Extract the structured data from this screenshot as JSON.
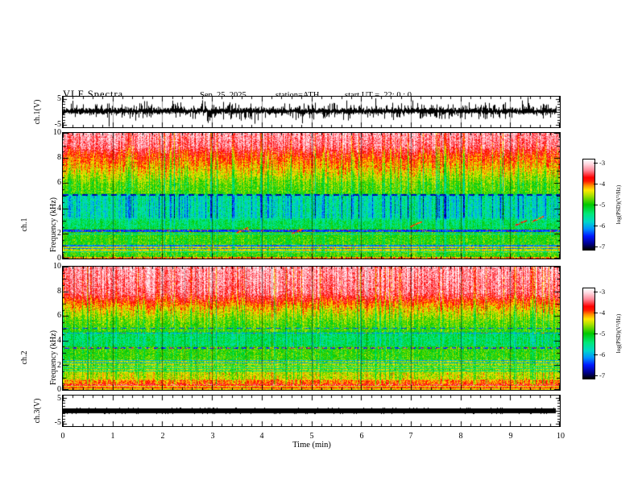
{
  "figure": {
    "title": "VLF Spectra",
    "date": "Sep. 25, 2025",
    "station": "station=ATH",
    "start_ut": "start UT =  22: 0 : 0",
    "time_axis": {
      "label": "Time (min)",
      "min": 0,
      "max": 10,
      "minor_step": 0.2,
      "tick_labels": [
        "0",
        "1",
        "2",
        "3",
        "4",
        "5",
        "6",
        "7",
        "8",
        "9",
        "10"
      ]
    }
  },
  "panels": {
    "ch1_wave": {
      "ylabel": "ch.1(V)",
      "ymin": -5,
      "ymax": 5,
      "tick_labels": [
        "5",
        "-5"
      ]
    },
    "ch1_spec": {
      "channel": "ch.1",
      "ylabel": "Frequency (kHz)",
      "fmin": 0,
      "fmax": 10,
      "tick_labels": [
        "10",
        "8",
        "6",
        "4",
        "2",
        "0"
      ]
    },
    "ch2_spec": {
      "channel": "ch.2",
      "ylabel": "Frequency (kHz)",
      "fmin": 0,
      "fmax": 10,
      "tick_labels": [
        "10",
        "8",
        "6",
        "4",
        "2",
        "0"
      ]
    },
    "ch3_wave": {
      "ylabel": "ch.3(V)",
      "ymin": -5,
      "ymax": 5,
      "tick_labels": [
        "5",
        "-5"
      ]
    }
  },
  "colorbar": {
    "label": "log(PSD)(V²/Hz)",
    "zmin": -7,
    "zmax": -3,
    "tick_labels": [
      "-3",
      "-4",
      "-5",
      "-6",
      "-7"
    ],
    "stops": [
      [
        0,
        "#000000"
      ],
      [
        0.07,
        "#000090"
      ],
      [
        0.15,
        "#0018ff"
      ],
      [
        0.23,
        "#0090ff"
      ],
      [
        0.31,
        "#00d8c8"
      ],
      [
        0.4,
        "#00e878"
      ],
      [
        0.5,
        "#00c800"
      ],
      [
        0.6,
        "#a8e000"
      ],
      [
        0.66,
        "#ffe800"
      ],
      [
        0.71,
        "#ff9000"
      ],
      [
        0.76,
        "#ff1800"
      ],
      [
        0.8,
        "#ff0000"
      ],
      [
        0.88,
        "#ff8898"
      ],
      [
        0.95,
        "#ffd8e0"
      ],
      [
        1,
        "#ffffff"
      ]
    ]
  },
  "chart_data": [
    {
      "type": "line",
      "name": "ch.1(V) waveform",
      "xlabel": "Time (min)",
      "ylabel": "ch.1(V)",
      "xlim": [
        0,
        10
      ],
      "ylim": [
        -5,
        5
      ],
      "summary": "dense black broadband noise centred near +0.3 V with impulsive spikes reaching about ±5 V over the full 10 minutes",
      "gen": {
        "center": 0.35,
        "drift": 0.3,
        "body": 0.85,
        "spike_prob": 0.26,
        "spike_amp": 2.2,
        "big_spike_prob": 0.06,
        "big_spike_amp": 3.1,
        "grid_minutes": true
      }
    },
    {
      "type": "heatmap",
      "name": "ch.1 spectrogram",
      "xlabel": "Time (min)",
      "ylabel": "Frequency (kHz)",
      "zlabel": "log(PSD)(V²/Hz)",
      "xlim": [
        0,
        10
      ],
      "ylim": [
        0,
        10
      ],
      "zlim": [
        -7,
        -3
      ],
      "summary": "red (-3.5) above ~8 kHz grading through yellow to green near 6 kHz; blue low-PSD band (-5.6 to -6.5) between ~3 and 5 kHz with dark vertical striations; green below 3 kHz with dark horizontal interference lines near 2.2, 2.0, 1.0, 0.8 and 0.5 kHz and a dashed dark line at ~5 kHz",
      "base_profile": [
        [
          0,
          -4.85
        ],
        [
          0.45,
          -4.85
        ],
        [
          0.6,
          -4.5
        ],
        [
          1.0,
          -4.5
        ],
        [
          1.15,
          -4.9
        ],
        [
          2.25,
          -4.95
        ],
        [
          2.45,
          -5.25
        ],
        [
          3.0,
          -5.3
        ],
        [
          3.3,
          -5.6
        ],
        [
          5.0,
          -5.6
        ],
        [
          5.2,
          -4.85
        ],
        [
          5.9,
          -4.8
        ],
        [
          7.0,
          -4.35
        ],
        [
          8.3,
          -3.85
        ],
        [
          8.9,
          -3.5
        ],
        [
          10,
          -3.35
        ]
      ],
      "streak_amp": [
        [
          0,
          0.28
        ],
        [
          3.1,
          0.3
        ],
        [
          3.3,
          0.6
        ],
        [
          5.0,
          0.6
        ],
        [
          5.15,
          0.3
        ],
        [
          5.9,
          0.5
        ],
        [
          8.8,
          0.5
        ],
        [
          9.0,
          0.38
        ],
        [
          10,
          0.38
        ]
      ],
      "noise": 0.32,
      "lines": [
        {
          "f": 5.05,
          "hw": 0.8,
          "psd": -6.6,
          "dash": [
            7,
            5
          ]
        },
        {
          "f": 2.2,
          "hw": 1.2,
          "psd": -6.3,
          "red_speckle": 0.1
        },
        {
          "f": 1.98,
          "hw": 0.6,
          "psd": -5.7
        },
        {
          "f": 1.02,
          "hw": 0.7,
          "psd": -6.1,
          "red_speckle": 0.05
        },
        {
          "f": 0.8,
          "hw": 0.7,
          "psd": -6.1,
          "red_speckle": 0.08
        },
        {
          "f": 0.52,
          "hw": 0.5,
          "psd": -5.6
        },
        {
          "f": 0.07,
          "hw": 1.0,
          "psd": -4.2,
          "jitter": 0.5
        }
      ],
      "events": [
        {
          "t": 3.6,
          "f": 2.3
        },
        {
          "t": 4.7,
          "f": 2.2
        },
        {
          "t": 7.1,
          "f": 2.8
        },
        {
          "t": 9.2,
          "f": 2.9
        },
        {
          "t": 9.55,
          "f": 3.2
        }
      ]
    },
    {
      "type": "heatmap",
      "name": "ch.2 spectrogram",
      "xlabel": "Time (min)",
      "ylabel": "Frequency (kHz)",
      "zlabel": "log(PSD)(V²/Hz)",
      "xlim": [
        0,
        10
      ],
      "ylim": [
        0,
        10
      ],
      "zlim": [
        -7,
        -3
      ],
      "summary": "red above ~7.2 kHz grading to green near 5.5 kHz; teal band 3.5-4.6 kHz; green below with dark interference lines near 2.4, 2.2, 1.9, 1.7, 1.5 kHz, dashed dark lines at ~5.0 and ~3.4 kHz (red-speckled), orange band 0.4-0.75 kHz and saturated red striped band below ~0.4 kHz",
      "base_profile": [
        [
          0,
          -3.55
        ],
        [
          0.38,
          -3.55
        ],
        [
          0.5,
          -4.05
        ],
        [
          0.75,
          -4.1
        ],
        [
          0.9,
          -4.5
        ],
        [
          1.35,
          -4.5
        ],
        [
          1.5,
          -4.65
        ],
        [
          2.35,
          -4.65
        ],
        [
          2.5,
          -4.9
        ],
        [
          3.45,
          -4.9
        ],
        [
          3.6,
          -5.3
        ],
        [
          4.55,
          -5.3
        ],
        [
          4.75,
          -4.9
        ],
        [
          5.1,
          -4.85
        ],
        [
          5.6,
          -4.75
        ],
        [
          6.6,
          -4.3
        ],
        [
          7.3,
          -3.85
        ],
        [
          7.9,
          -3.5
        ],
        [
          10,
          -3.35
        ]
      ],
      "streak_amp": [
        [
          0,
          0.25
        ],
        [
          0.45,
          0.42
        ],
        [
          1.4,
          0.42
        ],
        [
          1.55,
          0.28
        ],
        [
          3.5,
          0.3
        ],
        [
          5.5,
          0.35
        ],
        [
          6.0,
          0.5
        ],
        [
          10,
          0.42
        ]
      ],
      "noise": 0.32,
      "lines": [
        {
          "f": 5.0,
          "hw": 0.8,
          "psd": -6.2,
          "dash": [
            7,
            5
          ]
        },
        {
          "f": 4.62,
          "hw": 0.8,
          "psd": -6.0,
          "red_speckle": 0.1
        },
        {
          "f": 3.42,
          "hw": 0.9,
          "psd": -6.3,
          "dash": [
            6,
            4
          ],
          "red_speckle": 0.3
        },
        {
          "f": 2.38,
          "hw": 0.6,
          "psd": -5.9
        },
        {
          "f": 2.2,
          "hw": 0.6,
          "psd": -5.9
        },
        {
          "f": 1.9,
          "hw": 0.5,
          "psd": -5.5
        },
        {
          "f": 1.72,
          "hw": 0.5,
          "psd": -5.5
        },
        {
          "f": 1.52,
          "hw": 0.5,
          "psd": -5.5
        }
      ],
      "stripes": {
        "fmax": 0.38,
        "base": -3.45,
        "row_amp": 1.0
      },
      "events": []
    },
    {
      "type": "line",
      "name": "ch.3(V) waveform",
      "xlabel": "Time (min)",
      "ylabel": "ch.3(V)",
      "xlim": [
        0,
        10
      ],
      "ylim": [
        -5,
        5
      ],
      "summary": "flat saturated black trace at about 0 V, roughly ±1 V thick, constant for the whole record",
      "gen": {
        "flat": true,
        "center": 0.0,
        "half_thickness": 0.95
      }
    }
  ]
}
